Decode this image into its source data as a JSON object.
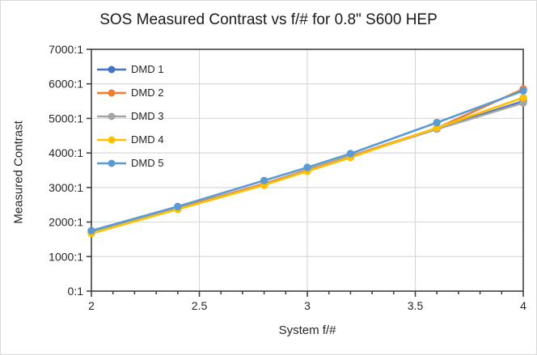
{
  "chart_data": {
    "type": "line",
    "title": "SOS Measured Contrast vs f/# for 0.8\" S600 HEP",
    "xlabel": "System f/#",
    "ylabel": "Measured Contrast",
    "x": [
      2,
      2.4,
      2.8,
      3,
      3.2,
      3.6,
      4
    ],
    "series": [
      {
        "name": "DMD 1",
        "color": "#4472C4",
        "values": [
          1700,
          2390,
          3090,
          3500,
          3900,
          4700,
          5500
        ]
      },
      {
        "name": "DMD 2",
        "color": "#ED7D31",
        "values": [
          1710,
          2400,
          3110,
          3510,
          3910,
          4720,
          5850
        ]
      },
      {
        "name": "DMD 3",
        "color": "#A5A5A5",
        "values": [
          1690,
          2380,
          3080,
          3490,
          3890,
          4690,
          5450
        ]
      },
      {
        "name": "DMD 4",
        "color": "#FFC000",
        "values": [
          1670,
          2370,
          3070,
          3470,
          3870,
          4730,
          5600
        ]
      },
      {
        "name": "DMD 5",
        "color": "#5B9BD5",
        "values": [
          1750,
          2450,
          3200,
          3580,
          3980,
          4880,
          5800
        ]
      }
    ],
    "xlim": [
      2,
      4
    ],
    "ylim": [
      0,
      7000
    ],
    "x_major_ticks": [
      2,
      2.5,
      3,
      3.5,
      4
    ],
    "x_tick_labels": [
      "2",
      "2.5",
      "3",
      "3.5",
      "4"
    ],
    "x_minor_step": 0.1,
    "y_ticks": [
      0,
      1000,
      2000,
      3000,
      4000,
      5000,
      6000,
      7000
    ],
    "y_tick_labels": [
      "0:1",
      "1000:1",
      "2000:1",
      "3000:1",
      "4000:1",
      "5000:1",
      "6000:1",
      "7000:1"
    ],
    "grid": true,
    "legend_position": "inside-top-left",
    "style": {
      "gridline_color": "#d9d9d9",
      "axis_color": "#404040",
      "text_color": "#262626",
      "background": "#ffffff",
      "frame_border_color": "#d9d9d9"
    }
  }
}
